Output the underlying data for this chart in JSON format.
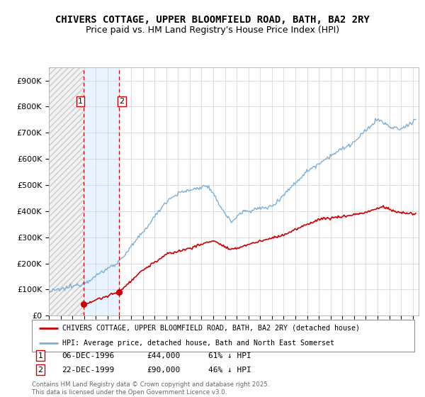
{
  "title": "CHIVERS COTTAGE, UPPER BLOOMFIELD ROAD, BATH, BA2 2RY",
  "subtitle": "Price paid vs. HM Land Registry's House Price Index (HPI)",
  "title_fontsize": 10,
  "subtitle_fontsize": 9,
  "ylabel_ticks": [
    "£0",
    "£100K",
    "£200K",
    "£300K",
    "£400K",
    "£500K",
    "£600K",
    "£700K",
    "£800K",
    "£900K"
  ],
  "ytick_values": [
    0,
    100000,
    200000,
    300000,
    400000,
    500000,
    600000,
    700000,
    800000,
    900000
  ],
  "ylim": [
    0,
    950000
  ],
  "xlim_start": 1994.0,
  "xlim_end": 2025.5,
  "hpi_color": "#7ab0d8",
  "price_color": "#cc0000",
  "transaction1_date": 1996.95,
  "transaction1_price": 44000,
  "transaction2_date": 1999.97,
  "transaction2_price": 90000,
  "legend_entries": [
    "CHIVERS COTTAGE, UPPER BLOOMFIELD ROAD, BATH, BA2 2RY (detached house)",
    "HPI: Average price, detached house, Bath and North East Somerset"
  ],
  "annotation1_label": "1",
  "annotation1_date_str": "06-DEC-1996",
  "annotation1_price_str": "£44,000",
  "annotation1_pct_str": "61% ↓ HPI",
  "annotation2_label": "2",
  "annotation2_date_str": "22-DEC-1999",
  "annotation2_price_str": "£90,000",
  "annotation2_pct_str": "46% ↓ HPI",
  "footer_text": "Contains HM Land Registry data © Crown copyright and database right 2025.\nThis data is licensed under the Open Government Licence v3.0.",
  "background_color": "#ffffff"
}
